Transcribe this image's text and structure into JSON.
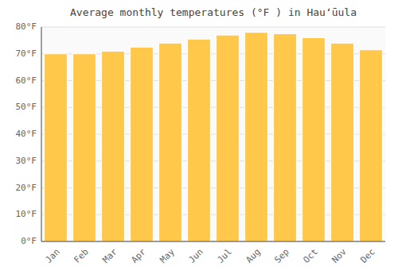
{
  "chart_data": {
    "type": "bar",
    "title": "Average monthly temperatures (°F ) in Hauʻūula",
    "categories": [
      "Jan",
      "Feb",
      "Mar",
      "Apr",
      "May",
      "Jun",
      "Jul",
      "Aug",
      "Sep",
      "Oct",
      "Nov",
      "Dec"
    ],
    "values": [
      70.0,
      70.0,
      71.0,
      72.5,
      74.0,
      75.5,
      77.0,
      78.0,
      77.5,
      76.0,
      74.0,
      71.5
    ],
    "color": "#FFC84A",
    "ylim": [
      0,
      80
    ],
    "yticks": [
      {
        "value": 0,
        "label": "0°F"
      },
      {
        "value": 10,
        "label": "10°F"
      },
      {
        "value": 20,
        "label": "20°F"
      },
      {
        "value": 30,
        "label": "30°F"
      },
      {
        "value": 40,
        "label": "40°F"
      },
      {
        "value": 50,
        "label": "50°F"
      },
      {
        "value": 60,
        "label": "60°F"
      },
      {
        "value": 70,
        "label": "70°F"
      },
      {
        "value": 80,
        "label": "80°F"
      }
    ],
    "grid": true
  }
}
